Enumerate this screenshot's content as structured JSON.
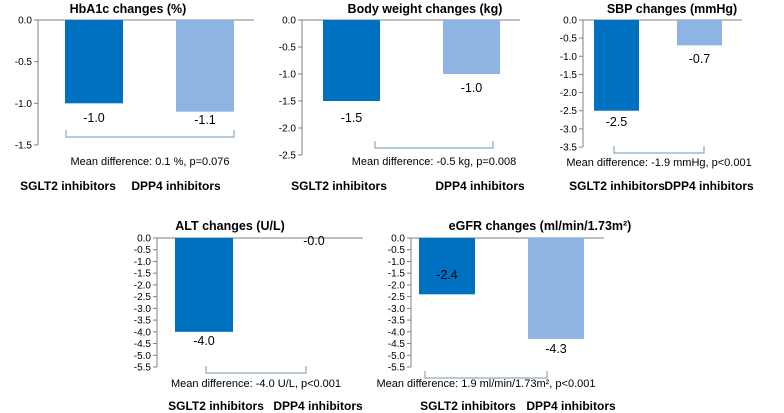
{
  "chart_data": [
    {
      "type": "bar",
      "title": "HbA1c changes (%)",
      "categories": [
        "SGLT2 inhibitors",
        "DPP4 inhibitors"
      ],
      "values": [
        -1.0,
        -1.1
      ],
      "value_labels": [
        "-1.0",
        "-1.1"
      ],
      "ylim": [
        -1.5,
        0
      ],
      "yticks": [
        "0.0",
        "-0.5",
        "-1.0",
        "-1.5"
      ],
      "annotation": "Mean difference: 0.1 %, p=0.076",
      "colors": [
        "#0070C0",
        "#8EB4E3"
      ],
      "grid": false,
      "legend": "none"
    },
    {
      "type": "bar",
      "title": "Body weight changes (kg)",
      "categories": [
        "SGLT2 inhibitors",
        "DPP4 inhibitors"
      ],
      "values": [
        -1.5,
        -1.0
      ],
      "value_labels": [
        "-1.5",
        "-1.0"
      ],
      "ylim": [
        -2.5,
        0
      ],
      "yticks": [
        "0.0",
        "-0.5",
        "-1.0",
        "-1.5",
        "-2.0",
        "-2.5"
      ],
      "annotation": "Mean difference: -0.5 kg, p=0.008",
      "colors": [
        "#0070C0",
        "#8EB4E3"
      ],
      "grid": false,
      "legend": "none"
    },
    {
      "type": "bar",
      "title": "SBP changes (mmHg)",
      "categories": [
        "SGLT2 inhibitors",
        "DPP4 inhibitors"
      ],
      "values": [
        -2.5,
        -0.7
      ],
      "value_labels": [
        "-2.5",
        "-0.7"
      ],
      "ylim": [
        -3.5,
        0
      ],
      "yticks": [
        "0.0",
        "-0.5",
        "-1.0",
        "-1.5",
        "-2.0",
        "-2.5",
        "-3.0",
        "-3.5"
      ],
      "annotation": "Mean difference: -1.9 mmHg, p<0.001",
      "colors": [
        "#0070C0",
        "#8EB4E3"
      ],
      "grid": false,
      "legend": "none"
    },
    {
      "type": "bar",
      "title": "ALT changes (U/L)",
      "categories": [
        "SGLT2 inhibitors",
        "DPP4 inhibitors"
      ],
      "values": [
        -4.0,
        -0.0
      ],
      "value_labels": [
        "-4.0",
        "-0.0"
      ],
      "ylim": [
        -5.5,
        0
      ],
      "yticks": [
        "0.0",
        "-0.5",
        "-1.0",
        "-1.5",
        "-2.0",
        "-2.5",
        "-3.0",
        "-3.5",
        "-4.0",
        "-4.5",
        "-5.0",
        "-5.5"
      ],
      "annotation": "Mean difference: -4.0 U/L, p<0.001",
      "colors": [
        "#0070C0",
        "#8EB4E3"
      ],
      "grid": false,
      "legend": "none"
    },
    {
      "type": "bar",
      "title": "eGFR changes (ml/min/1.73m²)",
      "categories": [
        "SGLT2 inhibitors",
        "DPP4 inhibitors"
      ],
      "values": [
        -2.4,
        -4.3
      ],
      "value_labels": [
        "-2.4",
        "-4.3"
      ],
      "ylim": [
        -5.5,
        0
      ],
      "yticks": [
        "0.0",
        "-0.5",
        "-1.0",
        "-1.5",
        "-2.0",
        "-2.5",
        "-3.0",
        "-3.5",
        "-4.0",
        "-4.5",
        "-5.0",
        "-5.5"
      ],
      "annotation": "Mean difference: 1.9 ml/min/1.73m², p<0.001",
      "colors": [
        "#0070C0",
        "#8EB4E3"
      ],
      "grid": false,
      "legend": "none"
    }
  ]
}
